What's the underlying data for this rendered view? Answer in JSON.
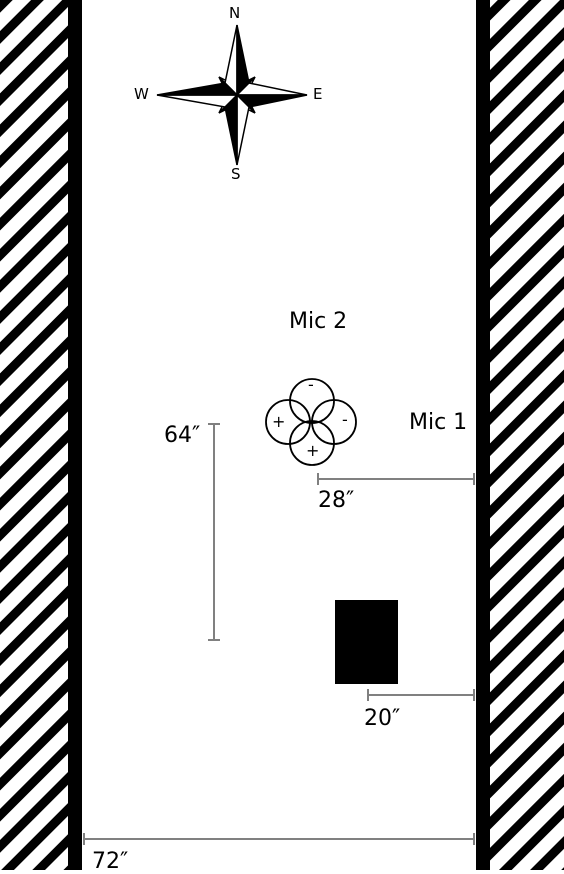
{
  "compass": {
    "north": "N",
    "south": "S",
    "east": "E",
    "west": "W"
  },
  "labels": {
    "mic1": "Mic 1",
    "mic2": "Mic 2"
  },
  "mic2_lobes": {
    "top": "-",
    "bottom": "+",
    "left": "+",
    "right": "-"
  },
  "dimensions": {
    "height_dim": "64″",
    "mic_to_wall": "28″",
    "box_to_wall": "20″",
    "room_width": "72″"
  },
  "colors": {
    "wall": "#000000",
    "dimension_line": "#808080",
    "fixture": "#000000",
    "background": "#ffffff"
  }
}
